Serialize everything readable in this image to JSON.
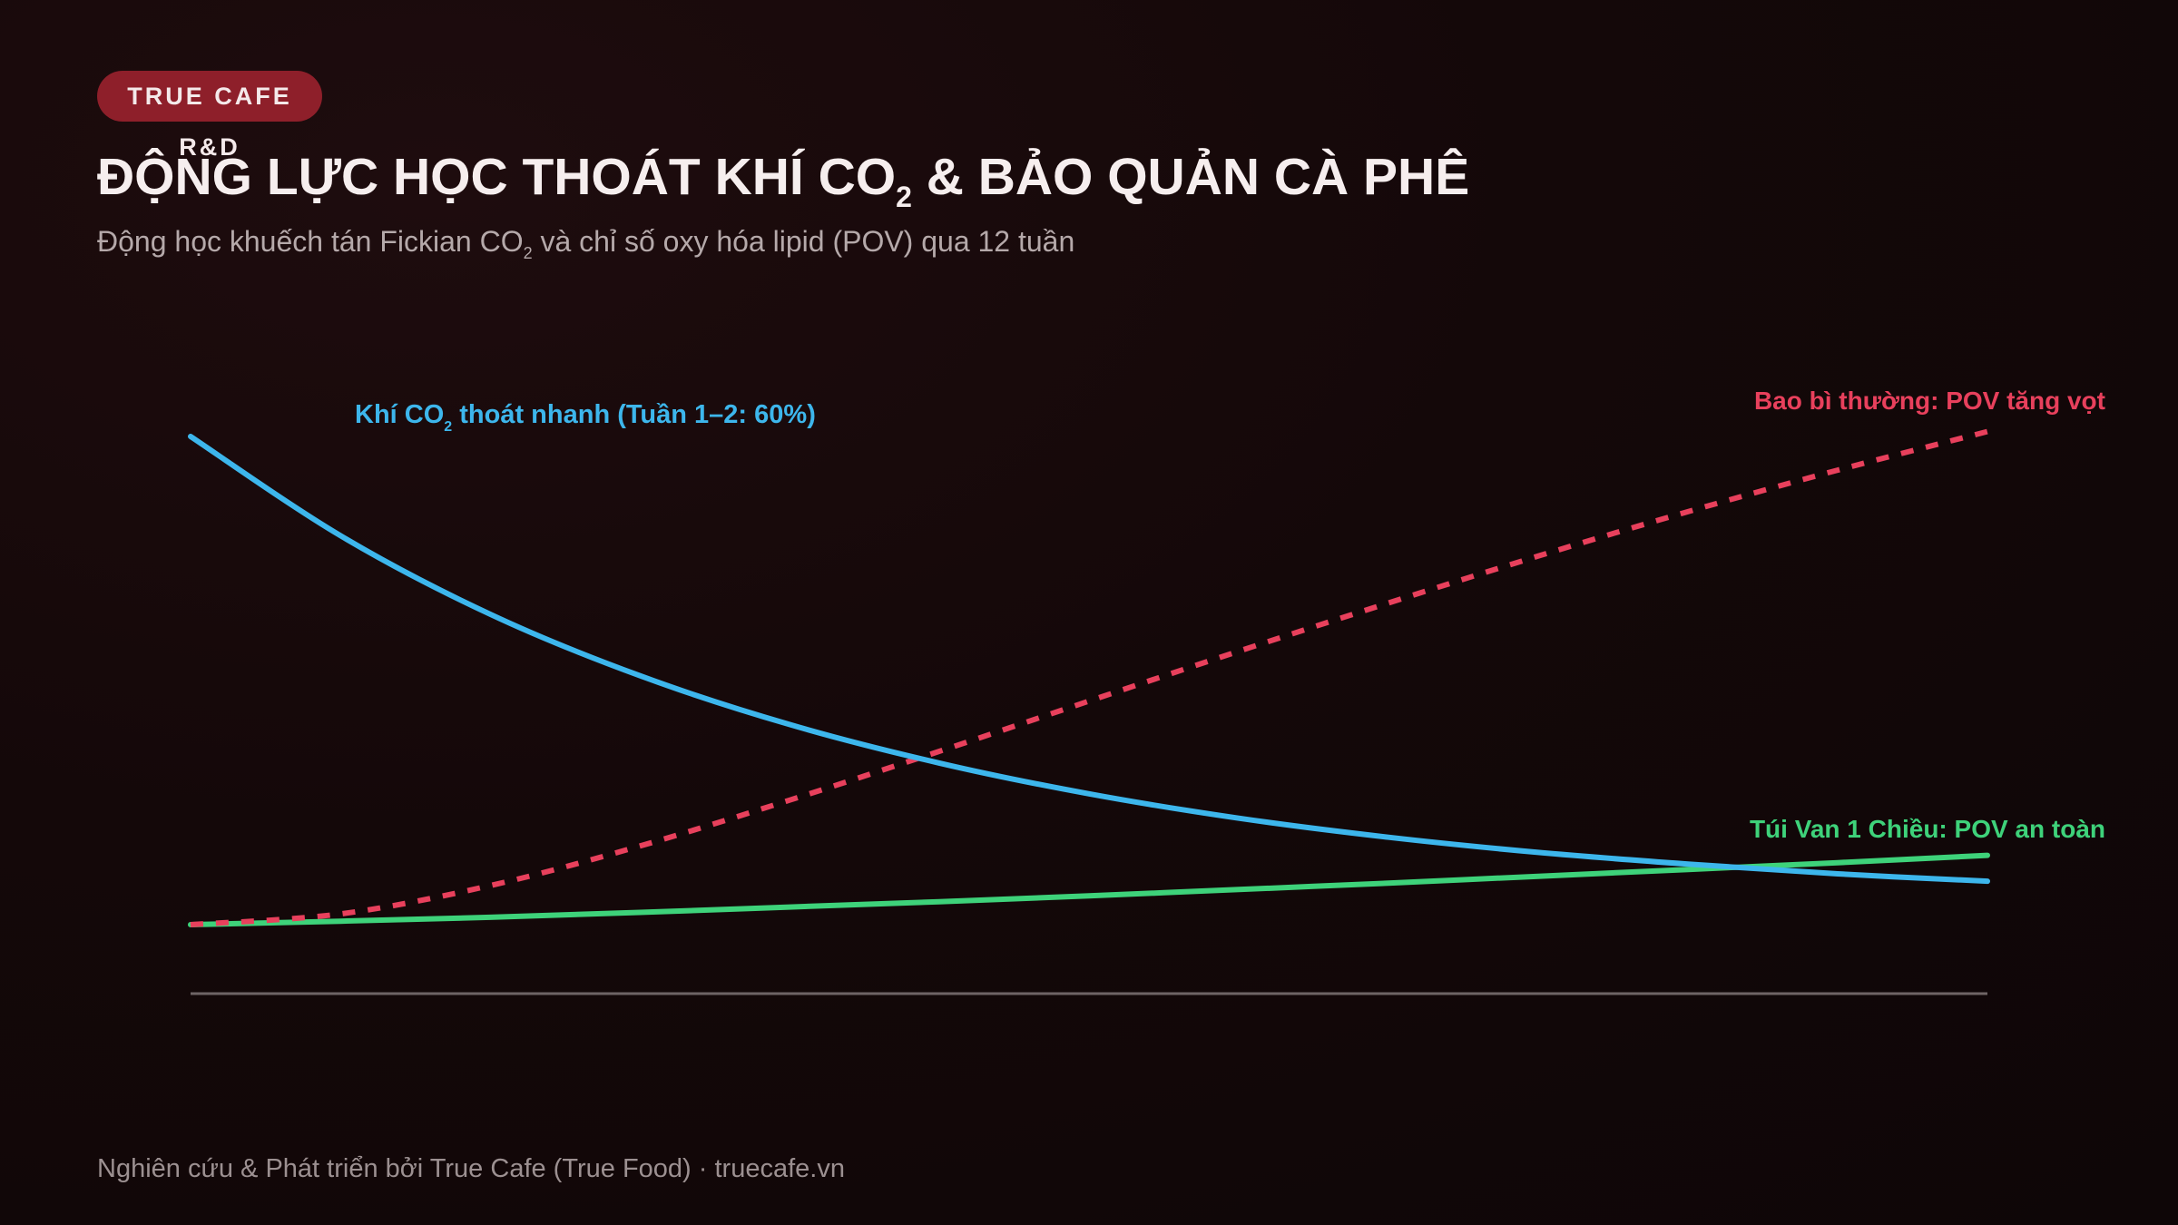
{
  "badge": "TRUE CAFE R&D",
  "title": {
    "before": "ĐỘNG LỰC HỌC THOÁT KHÍ CO",
    "sub": "2",
    "after": " & BẢO QUẢN CÀ PHÊ"
  },
  "subtitle": {
    "before": "Động học khuếch tán Fickian CO",
    "sub": "2",
    "after": " và chỉ số oxy hóa lipid (POV) qua 12 tuần"
  },
  "footer": "Nghiên cứu & Phát triển bởi True Cafe (True Food) · truecafe.vn",
  "colors": {
    "co2": "#3db6ec",
    "pov_normal": "#e8405c",
    "pov_valve": "#3ed27a",
    "baseline": "#6e6465"
  },
  "chart_data": {
    "type": "line",
    "x": [
      0,
      1,
      2,
      3,
      4,
      5,
      6,
      7,
      8,
      9,
      10,
      11,
      12
    ],
    "xlim": [
      0,
      12
    ],
    "ylim": [
      0,
      100
    ],
    "grid": false,
    "title": "",
    "xlabel": "",
    "ylabel": "",
    "series": [
      {
        "key": "co2",
        "style": "solid",
        "values": [
          100,
          79.7,
          63.6,
          51.0,
          41.0,
          33.1,
          26.8,
          21.8,
          17.9,
          14.8,
          12.4,
          10.4,
          8.9
        ],
        "label_before": "Khí CO",
        "label_sub": "2",
        "label_after": " thoát nhanh (Tuần 1–2: 60%)"
      },
      {
        "key": "pov_normal",
        "style": "dashed",
        "values": [
          0,
          2.2,
          8.0,
          16.1,
          25.5,
          35.5,
          45.8,
          56.0,
          65.9,
          75.5,
          84.6,
          93.1,
          101
        ],
        "label": "Bao bì thường: POV tăng vọt"
      },
      {
        "key": "pov_valve",
        "style": "solid",
        "values": [
          0,
          0.7,
          1.5,
          2.5,
          3.6,
          4.7,
          5.9,
          7.2,
          8.5,
          9.9,
          11.3,
          12.7,
          14.2
        ],
        "label": "Túi Van 1 Chiều: POV an toàn"
      }
    ]
  }
}
